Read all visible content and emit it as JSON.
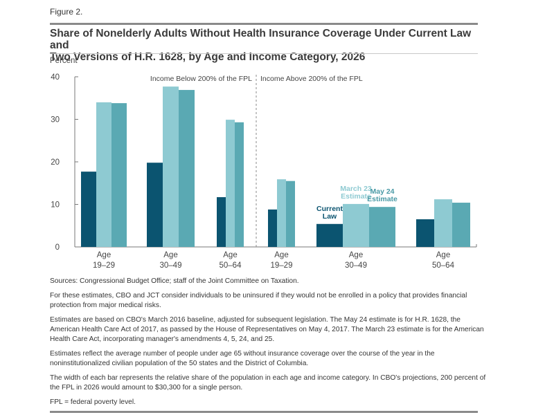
{
  "figure_label": "Figure 2.",
  "title_line1": "Share of Nonelderly Adults Without Health Insurance Coverage Under Current Law and",
  "title_line2": "Two Versions of H.R. 1628, by Age and Income Category, 2026",
  "notes": [
    "Sources: Congressional Budget Office; staff of the Joint Committee on Taxation.",
    "For these estimates, CBO and JCT consider individuals to be uninsured if they would not be enrolled in a policy that provides financial protection from major medical risks.",
    "Estimates are based on CBO's March 2016 baseline, adjusted for subsequent legislation. The May 24 estimate is for H.R. 1628, the American Health Care Act of 2017, as passed by the House of Representatives on May 4, 2017. The March 23 estimate is for the American Health Care Act, incorporating manager's amendments 4, 5, 24, and 25.",
    "Estimates reflect the average number of people under age 65 without insurance coverage over the course of the year in the noninstitutionalized civilian population of the 50 states and the District of Columbia.",
    "The width of each bar represents the relative share of the population in each age and income category. In CBO's projections, 200 percent of the FPL in 2026 would amount to $30,300 for a single person.",
    "FPL = federal poverty level."
  ],
  "chart_data": {
    "type": "bar",
    "title": "Share of Nonelderly Adults Without Health Insurance Coverage Under Current Law and Two Versions of H.R. 1628, by Age and Income Category, 2026",
    "xlabel": "",
    "ylabel": "Percent",
    "ylim": [
      0,
      40
    ],
    "yticks": [
      "0",
      "10",
      "20",
      "30",
      "40"
    ],
    "grid": false,
    "panels": [
      {
        "label": "Income Below 200% of the FPL",
        "categories": [
          0,
          1,
          2
        ]
      },
      {
        "label": "Income Above 200% of the FPL",
        "categories": [
          3,
          4,
          5
        ]
      }
    ],
    "categories": [
      {
        "line1": "Age",
        "line2": "19–29",
        "income": "Below 200% of the FPL"
      },
      {
        "line1": "Age",
        "line2": "30–49",
        "income": "Below 200% of the FPL"
      },
      {
        "line1": "Age",
        "line2": "50–64",
        "income": "Below 200% of the FPL"
      },
      {
        "line1": "Age",
        "line2": "19–29",
        "income": "Above 200% of the FPL"
      },
      {
        "line1": "Age",
        "line2": "30–49",
        "income": "Above 200% of the FPL"
      },
      {
        "line1": "Age",
        "line2": "50–64",
        "income": "Above 200% of the FPL"
      }
    ],
    "relative_population_share": [
      22,
      23,
      13,
      13,
      38,
      26
    ],
    "series": [
      {
        "name": "Current Law",
        "label_lines": [
          "Current",
          "Law"
        ],
        "color": "#0b5470",
        "values": [
          17.7,
          19.8,
          11.7,
          8.8,
          5.4,
          6.5
        ]
      },
      {
        "name": "March 23 Estimate",
        "label_lines": [
          "March 23",
          "Estimate"
        ],
        "color": "#8ecad2",
        "values": [
          34.0,
          37.7,
          29.9,
          15.9,
          10.1,
          11.2
        ]
      },
      {
        "name": "May 24 Estimate",
        "label_lines": [
          "May 24",
          "Estimate"
        ],
        "color": "#5aa9b3",
        "values": [
          33.8,
          36.9,
          29.3,
          15.5,
          9.4,
          10.4
        ]
      }
    ],
    "legend": "inline labels above Age 30–49 (Income Above 200% of the FPL) bars"
  }
}
